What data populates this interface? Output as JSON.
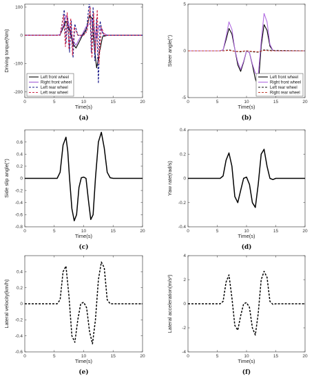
{
  "chart_data": [
    {
      "type": "line",
      "panel": "(a)",
      "xlabel": "Time(s)",
      "ylabel": "Driving torque(Nm)",
      "xlim": [
        0,
        20
      ],
      "ylim": [
        -220,
        110
      ],
      "xticks": [
        0,
        5,
        10,
        15,
        20
      ],
      "yticks": [
        -200,
        -100,
        0,
        100
      ],
      "legend": "bottom-left",
      "series": [
        {
          "name": "Left front wheel",
          "color": "#000000",
          "dash": "solid",
          "x": [
            0,
            5.5,
            6,
            6.6,
            7,
            7.4,
            7.7,
            8.2,
            8.7,
            9.2,
            9.8,
            10.4,
            11,
            11.4,
            11.8,
            12.2,
            12.6,
            13.2,
            14,
            20
          ],
          "y": [
            0,
            0,
            2,
            30,
            50,
            30,
            10,
            -30,
            -45,
            -25,
            0,
            20,
            70,
            60,
            -40,
            -115,
            -70,
            -5,
            0,
            0
          ]
        },
        {
          "name": "Right front wheel",
          "color": "#a15cd6",
          "dash": "solid",
          "x": [
            0,
            5.5,
            6,
            6.6,
            7,
            7.3,
            7.7,
            8.2,
            8.7,
            9.2,
            9.8,
            10.4,
            11,
            11.4,
            11.8,
            12.2,
            12.6,
            13.2,
            14,
            20
          ],
          "y": [
            0,
            0,
            3,
            40,
            70,
            55,
            20,
            -20,
            -35,
            -15,
            5,
            30,
            40,
            55,
            20,
            -10,
            35,
            10,
            0,
            0
          ]
        },
        {
          "name": "Left rear wheel",
          "color": "#1a1a8a",
          "dash": "dashed",
          "x": [
            0,
            6,
            6.7,
            7,
            7.3,
            7.6,
            7.9,
            8.2,
            8.5,
            9,
            10,
            10.5,
            11,
            11.3,
            11.6,
            11.9,
            12.2,
            12.5,
            12.8,
            13.3,
            20
          ],
          "y": [
            0,
            0,
            90,
            -30,
            60,
            -60,
            50,
            -80,
            40,
            0,
            0,
            20,
            130,
            -60,
            100,
            -90,
            60,
            -170,
            50,
            0,
            0
          ]
        },
        {
          "name": "Left rear wheel",
          "color": "#cc2244",
          "dash": "dashed",
          "x": [
            0,
            6,
            6.6,
            6.9,
            7.2,
            7.5,
            7.8,
            8.1,
            8.4,
            9,
            10,
            10.6,
            11.1,
            11.4,
            11.7,
            12,
            12.3,
            12.6,
            13,
            13.5,
            20
          ],
          "y": [
            0,
            0,
            70,
            -40,
            80,
            -50,
            60,
            -70,
            30,
            0,
            0,
            15,
            100,
            -80,
            80,
            -60,
            90,
            -100,
            30,
            0,
            0
          ]
        }
      ]
    },
    {
      "type": "line",
      "panel": "(b)",
      "xlabel": "Time(s)",
      "ylabel": "Steer angle(°)",
      "xlim": [
        0,
        20
      ],
      "ylim": [
        -5,
        5
      ],
      "xticks": [
        0,
        5,
        10,
        15,
        20
      ],
      "yticks": [
        -5,
        0,
        5
      ],
      "legend": "bottom-right",
      "series": [
        {
          "name": "Left front wheel",
          "color": "#000000",
          "dash": "solid",
          "x": [
            0,
            5.5,
            6,
            6.5,
            7,
            7.5,
            8,
            8.5,
            9,
            9.5,
            10,
            10.5,
            11,
            11.5,
            12,
            12.5,
            13,
            13.5,
            14,
            14.5,
            15,
            20
          ],
          "y": [
            0,
            0,
            0.1,
            1.2,
            2.4,
            1.8,
            0.2,
            -1.5,
            -2.2,
            -1.2,
            0,
            -0.2,
            -1.5,
            -3.0,
            -3.8,
            0.5,
            2.8,
            2.2,
            0.5,
            0.05,
            0,
            0
          ]
        },
        {
          "name": "Right front wheel",
          "color": "#b06ae0",
          "dash": "solid",
          "x": [
            0,
            5.5,
            6,
            6.5,
            7,
            7.5,
            8,
            8.5,
            9,
            9.5,
            10,
            10.5,
            11,
            11.5,
            12,
            12.5,
            13,
            13.5,
            14,
            14.5,
            15,
            20
          ],
          "y": [
            0,
            0,
            0.1,
            1.5,
            3.1,
            2.3,
            0.2,
            -1.2,
            -2.0,
            -1.1,
            0,
            -0.2,
            -1.4,
            -2.4,
            -2.6,
            1.0,
            4.0,
            3.1,
            0.7,
            0.05,
            0,
            0
          ]
        },
        {
          "name": "Left rear wheel",
          "color": "#111111",
          "dash": "dashed",
          "x": [
            0,
            6,
            7,
            8,
            9,
            10,
            11,
            12,
            13,
            14,
            20
          ],
          "y": [
            0,
            0,
            0.1,
            -0.05,
            -0.1,
            0,
            -0.1,
            -0.15,
            0.1,
            0.05,
            0
          ]
        },
        {
          "name": "Right rear wheel",
          "color": "#c0392b",
          "dash": "dashed",
          "x": [
            0,
            6,
            7,
            8,
            9,
            10,
            11,
            12,
            13,
            14,
            20
          ],
          "y": [
            0,
            0,
            0.05,
            -0.05,
            -0.05,
            0,
            -0.05,
            -0.1,
            0.05,
            0,
            0
          ]
        }
      ]
    },
    {
      "type": "line",
      "panel": "(c)",
      "xlabel": "Time(s)",
      "ylabel": "Side slip angle(°)",
      "xlim": [
        0,
        20
      ],
      "ylim": [
        -0.8,
        0.8
      ],
      "xticks": [
        0,
        5,
        10,
        15,
        20
      ],
      "yticks": [
        -0.8,
        -0.6,
        -0.4,
        -0.2,
        0,
        0.2,
        0.4,
        0.6
      ],
      "series": [
        {
          "name": "",
          "color": "#000000",
          "dash": "solid",
          "x": [
            0,
            5.5,
            6,
            6.5,
            7,
            7.3,
            7.6,
            8,
            8.4,
            8.8,
            9.2,
            9.6,
            10,
            10.4,
            10.8,
            11.2,
            11.6,
            12,
            12.5,
            13,
            13.5,
            14,
            14.5,
            15,
            20
          ],
          "y": [
            0,
            0,
            0.1,
            0.55,
            0.68,
            0.45,
            0.0,
            -0.5,
            -0.7,
            -0.6,
            -0.15,
            0.01,
            0.02,
            0.0,
            -0.35,
            -0.68,
            -0.6,
            0.0,
            0.6,
            0.76,
            0.5,
            0.1,
            0.01,
            0,
            0
          ]
        }
      ]
    },
    {
      "type": "line",
      "panel": "(d)",
      "xlabel": "Time(s)",
      "ylabel": "Yaw rate(rad/s)",
      "xlim": [
        0,
        20
      ],
      "ylim": [
        -0.4,
        0.4
      ],
      "xticks": [
        0,
        5,
        10,
        15,
        20
      ],
      "yticks": [
        -0.4,
        -0.2,
        0,
        0.2,
        0.4
      ],
      "series": [
        {
          "name": "",
          "color": "#000000",
          "dash": "solid",
          "x": [
            0,
            5.5,
            6,
            6.5,
            7,
            7.5,
            8,
            8.5,
            9,
            9.5,
            10,
            10.5,
            11,
            11.5,
            12,
            12.5,
            13,
            13.5,
            14,
            14.5,
            15,
            20
          ],
          "y": [
            0,
            0,
            0.02,
            0.15,
            0.21,
            0.1,
            -0.15,
            -0.2,
            -0.1,
            0.0,
            0.01,
            -0.05,
            -0.2,
            -0.24,
            -0.05,
            0.2,
            0.24,
            0.1,
            0.0,
            -0.01,
            0,
            0
          ]
        }
      ]
    },
    {
      "type": "line",
      "panel": "(e)",
      "xlabel": "Time(s)",
      "ylabel": "Lateral velocity(km/h)",
      "xlim": [
        0,
        20
      ],
      "ylim": [
        -0.6,
        0.6
      ],
      "xticks": [
        0,
        5,
        10,
        15,
        20
      ],
      "yticks": [
        -0.6,
        -0.4,
        -0.2,
        0,
        0.2,
        0.4
      ],
      "series": [
        {
          "name": "",
          "color": "#000000",
          "dash": "dashed",
          "x": [
            0,
            5.5,
            6,
            6.5,
            7,
            7.5,
            8,
            8.5,
            9,
            9.5,
            10,
            10.5,
            11,
            11.5,
            12,
            12.5,
            13,
            13.5,
            14,
            14.5,
            15,
            20
          ],
          "y": [
            0,
            0,
            0.05,
            0.4,
            0.47,
            0.1,
            -0.4,
            -0.48,
            -0.2,
            0.0,
            0.02,
            -0.05,
            -0.35,
            -0.5,
            -0.2,
            0.3,
            0.52,
            0.45,
            0.05,
            0.0,
            0,
            0
          ]
        }
      ]
    },
    {
      "type": "line",
      "panel": "(f)",
      "xlabel": "Time(s)",
      "ylabel": "Lateral acceleration(m/s²)",
      "xlim": [
        0,
        20
      ],
      "ylim": [
        -4,
        4
      ],
      "xticks": [
        0,
        5,
        10,
        15,
        20
      ],
      "yticks": [
        -4,
        -2,
        0,
        2,
        4
      ],
      "series": [
        {
          "name": "",
          "color": "#000000",
          "dash": "dashed",
          "x": [
            0,
            5.5,
            6,
            6.5,
            7,
            7.5,
            8,
            8.5,
            9,
            9.5,
            10,
            10.5,
            11,
            11.5,
            12,
            12.5,
            13,
            13.5,
            14,
            14.5,
            15,
            20
          ],
          "y": [
            0,
            0,
            0.2,
            1.8,
            2.4,
            0.5,
            -1.8,
            -2.2,
            -1.0,
            0.0,
            0.1,
            -0.3,
            -2.0,
            -2.6,
            -0.8,
            2.0,
            2.7,
            2.2,
            0.2,
            -0.05,
            0,
            0
          ]
        }
      ]
    }
  ]
}
